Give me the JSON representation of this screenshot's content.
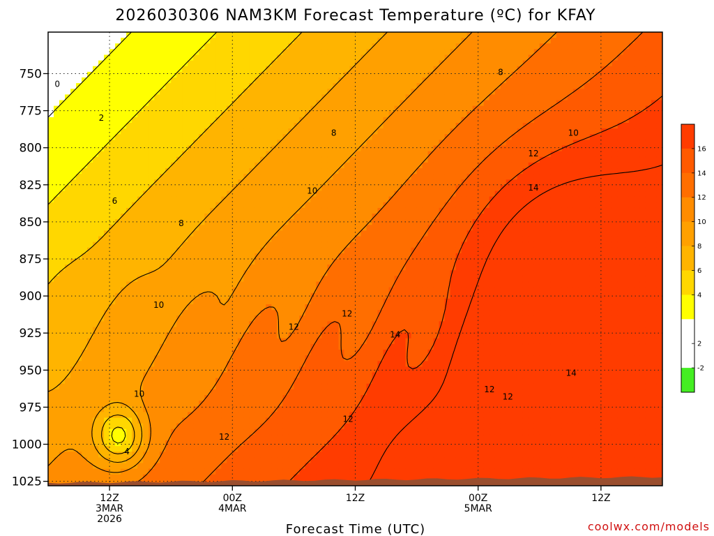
{
  "chart_data": {
    "type": "heatmap",
    "title": "2026030306 NAM3KM Forecast Temperature (ºC) for KFAY",
    "xlabel": "Forecast Time (UTC)",
    "ylabel": "",
    "watermark": "coolwx.com/models",
    "x_axis": {
      "ticks": [
        {
          "value_h": 6,
          "lines": [
            "12Z",
            "3MAR",
            "2026"
          ]
        },
        {
          "value_h": 18,
          "lines": [
            "00Z",
            "4MAR"
          ]
        },
        {
          "value_h": 30,
          "lines": [
            "12Z"
          ]
        },
        {
          "value_h": 42,
          "lines": [
            "00Z",
            "5MAR"
          ]
        },
        {
          "value_h": 54,
          "lines": [
            "12Z"
          ]
        }
      ],
      "range_h": [
        0,
        60
      ],
      "units": "forecast hour from 2026-03-03 06Z"
    },
    "y_axis": {
      "ticks": [
        750,
        775,
        800,
        825,
        850,
        875,
        900,
        925,
        950,
        975,
        1000,
        1025
      ],
      "range": [
        722,
        1028
      ],
      "units": "hPa",
      "inverted": true
    },
    "grid": true,
    "colorbar": {
      "placement": "right",
      "labels": [
        "16",
        "14",
        "12",
        "10",
        "8",
        "6",
        "4",
        "2",
        "-2"
      ],
      "bands": [
        {
          "from": 16,
          "to": 18,
          "color": "#ff3c00"
        },
        {
          "from": 14,
          "to": 16,
          "color": "#ff5a00"
        },
        {
          "from": 12,
          "to": 14,
          "color": "#ff6e00"
        },
        {
          "from": 10,
          "to": 12,
          "color": "#ff8c00"
        },
        {
          "from": 8,
          "to": 10,
          "color": "#ffa000"
        },
        {
          "from": 6,
          "to": 8,
          "color": "#ffb400"
        },
        {
          "from": 4,
          "to": 6,
          "color": "#ffd700"
        },
        {
          "from": 2,
          "to": 4,
          "color": "#ffff00"
        },
        {
          "from": 0,
          "to": 2,
          "color": "#ffffff"
        },
        {
          "from": -2,
          "to": 0,
          "color": "#ffffff"
        },
        {
          "from": -4,
          "to": -2,
          "color": "#44ee22"
        }
      ]
    },
    "contour_interval": 2,
    "zero_contour_color": "#b0186a",
    "surface_color": "#9a4e2e",
    "contour_labels": [
      {
        "value": "0",
        "t": 0.9,
        "p": 757
      },
      {
        "value": "2",
        "t": 5.2,
        "p": 780
      },
      {
        "value": "6",
        "t": 6.5,
        "p": 836
      },
      {
        "value": "8",
        "t": 13.0,
        "p": 851
      },
      {
        "value": "10",
        "t": 10.8,
        "p": 906
      },
      {
        "value": "10",
        "t": 8.9,
        "p": 966
      },
      {
        "value": "4",
        "t": 7.7,
        "p": 1005
      },
      {
        "value": "12",
        "t": 17.2,
        "p": 995
      },
      {
        "value": "8",
        "t": 27.9,
        "p": 790
      },
      {
        "value": "10",
        "t": 25.8,
        "p": 829
      },
      {
        "value": "12",
        "t": 24.0,
        "p": 921
      },
      {
        "value": "12",
        "t": 29.2,
        "p": 912
      },
      {
        "value": "12",
        "t": 29.3,
        "p": 983
      },
      {
        "value": "14",
        "t": 33.9,
        "p": 926
      },
      {
        "value": "8",
        "t": 44.2,
        "p": 749
      },
      {
        "value": "10",
        "t": 51.3,
        "p": 790
      },
      {
        "value": "12",
        "t": 47.4,
        "p": 804
      },
      {
        "value": "14",
        "t": 47.4,
        "p": 827
      },
      {
        "value": "14",
        "t": 51.1,
        "p": 952
      },
      {
        "value": "12",
        "t": 43.1,
        "p": 963
      },
      {
        "value": "12",
        "t": 44.9,
        "p": 968
      }
    ],
    "fields": {
      "base_temp": {
        "at_750": 1,
        "lapse_per_hPa": 0.034
      },
      "warming_per_hour": 0.24,
      "warm_core": {
        "t": 50,
        "p": 880,
        "amp": 4.5,
        "st": 9,
        "sp": 70
      },
      "low_level_warm": {
        "t": 40,
        "p": 1010,
        "amp": 3.5,
        "st": 5,
        "sp": 25
      },
      "cool_pocket": {
        "t": 7,
        "p": 995,
        "amp": -7.5,
        "st": 2.5,
        "sp": 20
      }
    }
  }
}
